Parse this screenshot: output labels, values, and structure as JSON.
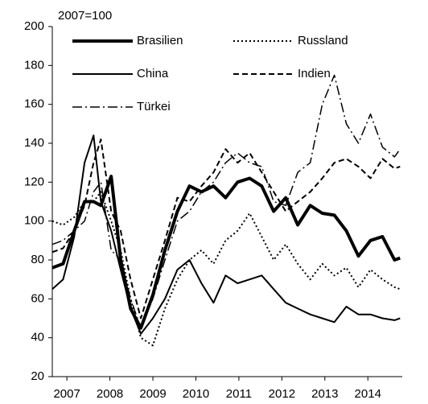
{
  "chart_data": {
    "type": "line",
    "annotation": "2007=100",
    "x": [
      2006.66,
      2006.91,
      2007.17,
      2007.41,
      2007.62,
      2007.79,
      2008.03,
      2008.25,
      2008.48,
      2008.72,
      2009.0,
      2009.28,
      2009.57,
      2009.85,
      2010.13,
      2010.41,
      2010.69,
      2010.97,
      2011.25,
      2011.53,
      2011.81,
      2012.09,
      2012.37,
      2012.66,
      2012.94,
      2013.22,
      2013.5,
      2013.78,
      2014.06,
      2014.34,
      2014.62,
      2014.75
    ],
    "series": [
      {
        "name": "Brasilien",
        "color": "#000000",
        "width": 4,
        "dash": "none",
        "values": [
          76,
          78,
          95,
          110,
          110,
          108,
          123,
          80,
          55,
          45,
          62,
          85,
          105,
          118,
          115,
          118,
          112,
          120,
          122,
          118,
          105,
          112,
          98,
          108,
          104,
          103,
          95,
          82,
          90,
          92,
          80,
          81
        ]
      },
      {
        "name": "Russland",
        "color": "#000000",
        "width": 2,
        "dash": "2,3",
        "values": [
          100,
          98,
          102,
          110,
          110,
          115,
          100,
          85,
          60,
          40,
          36,
          55,
          70,
          80,
          85,
          78,
          90,
          95,
          104,
          92,
          80,
          88,
          78,
          70,
          78,
          72,
          76,
          66,
          75,
          70,
          66,
          65
        ]
      },
      {
        "name": "China",
        "color": "#000000",
        "width": 2,
        "dash": "none",
        "values": [
          65,
          70,
          92,
          130,
          144,
          110,
          95,
          75,
          55,
          42,
          50,
          60,
          75,
          80,
          68,
          58,
          72,
          68,
          70,
          72,
          65,
          58,
          55,
          52,
          50,
          48,
          56,
          52,
          52,
          50,
          49,
          50
        ]
      },
      {
        "name": "Indien",
        "color": "#000000",
        "width": 2,
        "dash": "7,4",
        "values": [
          84,
          86,
          95,
          108,
          130,
          142,
          105,
          95,
          70,
          50,
          70,
          90,
          112,
          110,
          118,
          125,
          137,
          130,
          135,
          125,
          115,
          105,
          110,
          115,
          122,
          130,
          132,
          128,
          122,
          132,
          127,
          128
        ]
      },
      {
        "name": "Türkei",
        "color": "#000000",
        "width": 1.5,
        "dash": "12,4,2,4",
        "values": [
          88,
          90,
          95,
          100,
          115,
          120,
          85,
          80,
          60,
          45,
          60,
          80,
          100,
          105,
          115,
          120,
          130,
          135,
          130,
          128,
          110,
          108,
          125,
          130,
          160,
          175,
          150,
          140,
          155,
          138,
          133,
          137
        ]
      }
    ],
    "xlim": [
      2006.66,
      2014.8
    ],
    "xticks": [
      2007,
      2008,
      2009,
      2010,
      2011,
      2012,
      2013,
      2014
    ],
    "ylim": [
      20,
      200
    ],
    "yticks": [
      20,
      40,
      60,
      80,
      100,
      120,
      140,
      160,
      180,
      200
    ],
    "grid": false
  }
}
